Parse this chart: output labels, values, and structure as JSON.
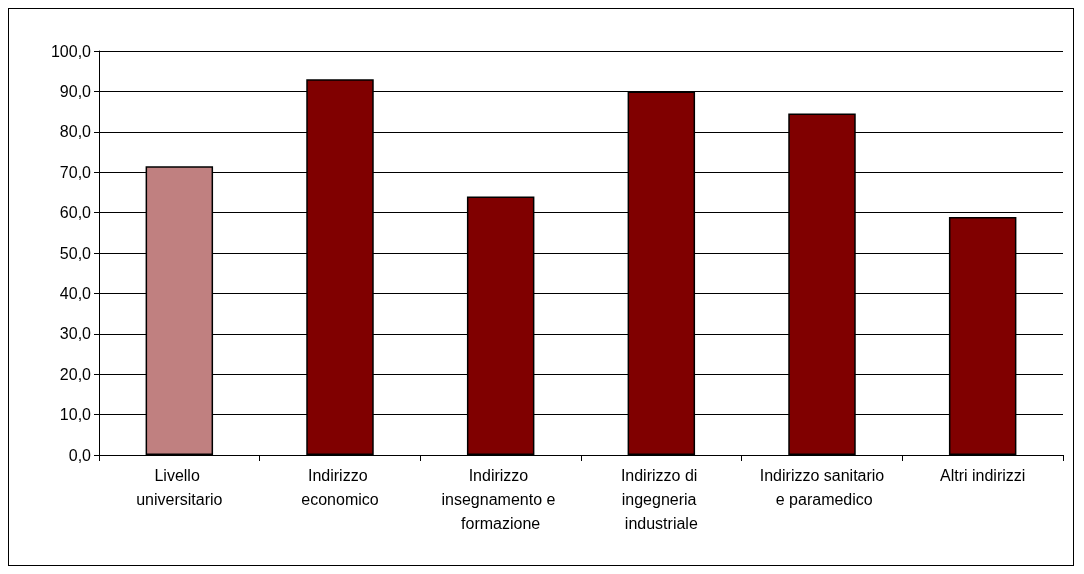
{
  "chart_data": {
    "type": "bar",
    "categories": [
      "Livello universitario",
      "Indirizzo economico",
      "Indirizzo insegnamento e formazione",
      "Indirizzo di ingegneria industriale",
      "Indirizzo sanitario e paramedico",
      "Altri indirizzi"
    ],
    "values": [
      71.5,
      93.0,
      64.0,
      90.0,
      84.5,
      58.9
    ],
    "colors": [
      "#c08080",
      "#800000",
      "#800000",
      "#800000",
      "#800000",
      "#800000"
    ],
    "ylim": [
      0,
      100
    ],
    "yticks": [
      {
        "value": 0,
        "label": "0,0"
      },
      {
        "value": 10,
        "label": "10,0"
      },
      {
        "value": 20,
        "label": "20,0"
      },
      {
        "value": 30,
        "label": "30,0"
      },
      {
        "value": 40,
        "label": "40,0"
      },
      {
        "value": 50,
        "label": "50,0"
      },
      {
        "value": 60,
        "label": "60,0"
      },
      {
        "value": 70,
        "label": "70,0"
      },
      {
        "value": 80,
        "label": "80,0"
      },
      {
        "value": 90,
        "label": "90,0"
      },
      {
        "value": 100,
        "label": "100,0"
      }
    ],
    "grid": "y"
  }
}
